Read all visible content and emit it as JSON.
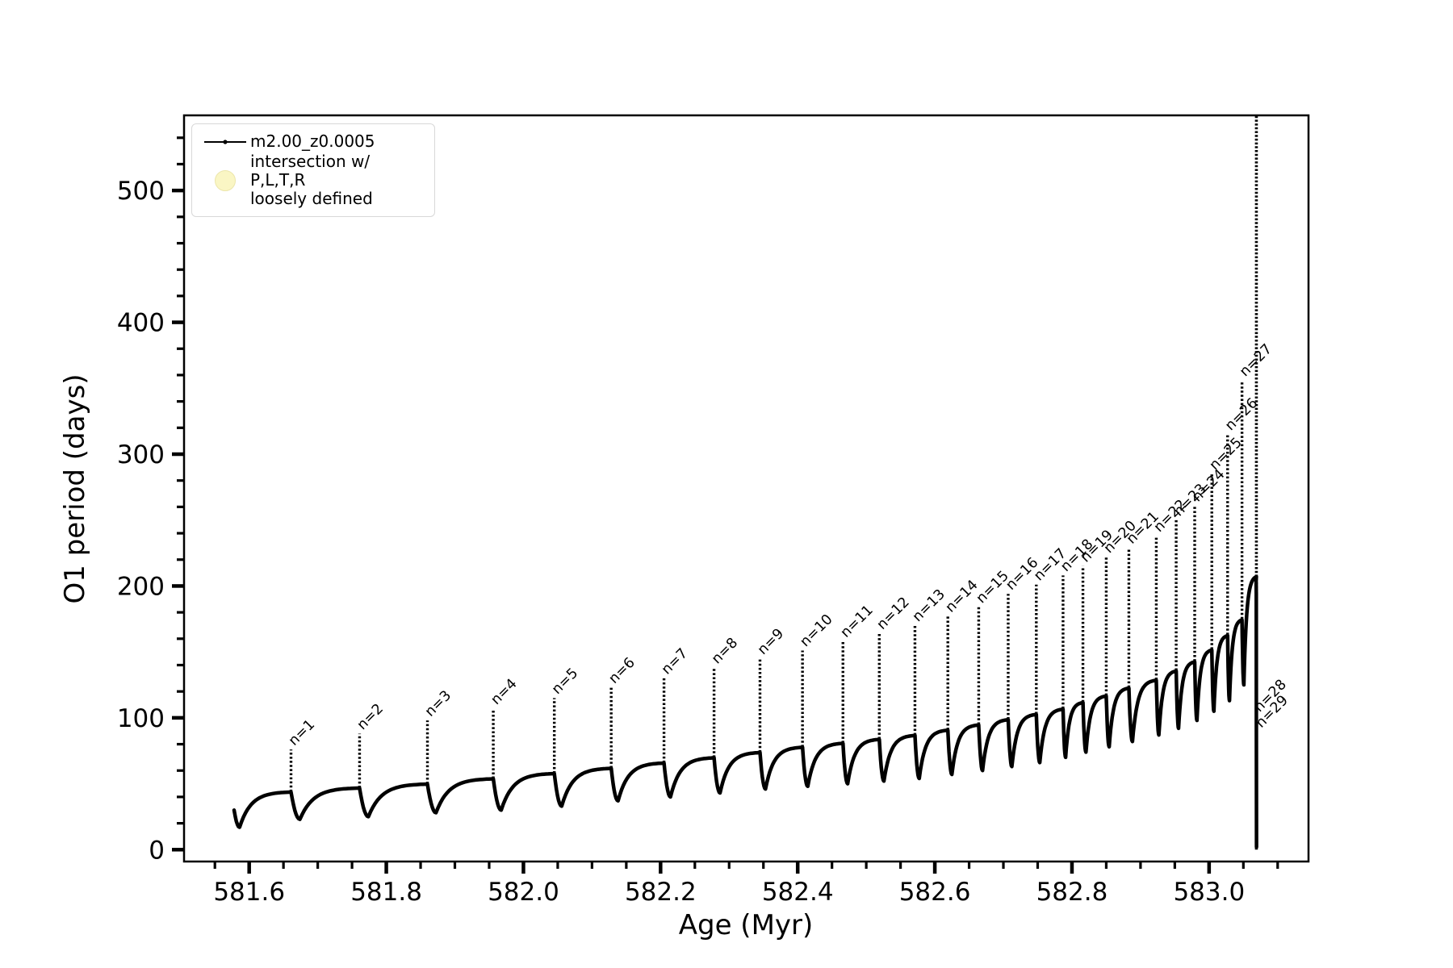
{
  "legend": {
    "items": [
      {
        "label": "m2.00_z0.0005",
        "marker": "line-dot",
        "marker_color": "#000000"
      },
      {
        "label": "intersection w/ P,L,T,R\nloosely defined",
        "marker": "filled-circle",
        "marker_color": "#faf6c4"
      }
    ]
  },
  "colors": {
    "series": "#000000",
    "intersection_marker": "#faf6c4",
    "legend_border": "#d8d8d8"
  },
  "chart_data": {
    "type": "line",
    "title": "",
    "xlabel": "Age (Myr)",
    "ylabel": "O1 period (days)",
    "series_name": "m2.00_z0.0005",
    "xlim": [
      581.505,
      583.145
    ],
    "ylim": [
      -9,
      557
    ],
    "xticks": [
      {
        "v": 581.6,
        "label": "581.6"
      },
      {
        "v": 581.8,
        "label": "581.8"
      },
      {
        "v": 582.0,
        "label": "582.0"
      },
      {
        "v": 582.2,
        "label": "582.2"
      },
      {
        "v": 582.4,
        "label": "582.4"
      },
      {
        "v": 582.6,
        "label": "582.6"
      },
      {
        "v": 582.8,
        "label": "582.8"
      },
      {
        "v": 583.0,
        "label": "583.0"
      }
    ],
    "yticks": [
      {
        "v": 0,
        "label": "0"
      },
      {
        "v": 100,
        "label": "100"
      },
      {
        "v": 200,
        "label": "200"
      },
      {
        "v": 300,
        "label": "300"
      },
      {
        "v": 400,
        "label": "400"
      },
      {
        "v": 500,
        "label": "500"
      }
    ],
    "x_minor_step": 0.05,
    "y_minor_step": 20,
    "grid": false,
    "legend_position": "upper-left",
    "annotation_prefix": "n=",
    "start": {
      "age": 581.578,
      "value": 30,
      "dip_value": 17,
      "dip_age": 581.586
    },
    "spikes": [
      {
        "n": 1,
        "age": 581.661,
        "peak": 76,
        "plateau_before": 44,
        "dip_after": 23
      },
      {
        "n": 2,
        "age": 581.761,
        "peak": 88,
        "plateau_before": 47,
        "dip_after": 25
      },
      {
        "n": 3,
        "age": 581.86,
        "peak": 98,
        "plateau_before": 50,
        "dip_after": 28
      },
      {
        "n": 4,
        "age": 581.956,
        "peak": 107,
        "plateau_before": 54,
        "dip_after": 30
      },
      {
        "n": 5,
        "age": 582.045,
        "peak": 115,
        "plateau_before": 58,
        "dip_after": 33
      },
      {
        "n": 6,
        "age": 582.128,
        "peak": 123,
        "plateau_before": 62,
        "dip_after": 37
      },
      {
        "n": 7,
        "age": 582.205,
        "peak": 130,
        "plateau_before": 66,
        "dip_after": 40
      },
      {
        "n": 8,
        "age": 582.278,
        "peak": 138,
        "plateau_before": 70,
        "dip_after": 43
      },
      {
        "n": 9,
        "age": 582.345,
        "peak": 145,
        "plateau_before": 74,
        "dip_after": 46
      },
      {
        "n": 10,
        "age": 582.407,
        "peak": 151,
        "plateau_before": 78,
        "dip_after": 48
      },
      {
        "n": 11,
        "age": 582.466,
        "peak": 158,
        "plateau_before": 81,
        "dip_after": 50
      },
      {
        "n": 12,
        "age": 582.519,
        "peak": 164,
        "plateau_before": 84,
        "dip_after": 52
      },
      {
        "n": 13,
        "age": 582.571,
        "peak": 170,
        "plateau_before": 87,
        "dip_after": 54
      },
      {
        "n": 14,
        "age": 582.619,
        "peak": 177,
        "plateau_before": 91,
        "dip_after": 57
      },
      {
        "n": 15,
        "age": 582.664,
        "peak": 184,
        "plateau_before": 95,
        "dip_after": 60
      },
      {
        "n": 16,
        "age": 582.707,
        "peak": 194,
        "plateau_before": 99,
        "dip_after": 63
      },
      {
        "n": 17,
        "age": 582.748,
        "peak": 201,
        "plateau_before": 103,
        "dip_after": 66
      },
      {
        "n": 18,
        "age": 582.787,
        "peak": 208,
        "plateau_before": 107,
        "dip_after": 70
      },
      {
        "n": 19,
        "age": 582.816,
        "peak": 215,
        "plateau_before": 112,
        "dip_after": 74
      },
      {
        "n": 20,
        "age": 582.85,
        "peak": 222,
        "plateau_before": 117,
        "dip_after": 78
      },
      {
        "n": 21,
        "age": 582.883,
        "peak": 229,
        "plateau_before": 123,
        "dip_after": 82
      },
      {
        "n": 22,
        "age": 582.923,
        "peak": 238,
        "plateau_before": 129,
        "dip_after": 87
      },
      {
        "n": 23,
        "age": 582.952,
        "peak": 250,
        "plateau_before": 136,
        "dip_after": 92
      },
      {
        "n": 24,
        "age": 582.979,
        "peak": 261,
        "plateau_before": 143,
        "dip_after": 98
      },
      {
        "n": 25,
        "age": 583.004,
        "peak": 285,
        "plateau_before": 152,
        "dip_after": 105
      },
      {
        "n": 26,
        "age": 583.027,
        "peak": 315,
        "plateau_before": 163,
        "dip_after": 113
      },
      {
        "n": 27,
        "age": 583.048,
        "peak": 356,
        "plateau_before": 175,
        "dip_after": 125
      }
    ],
    "final_event": {
      "age": 583.069,
      "peak_before": 208,
      "line_bottom": 0,
      "line_top": 557,
      "labels": [
        {
          "n": 28,
          "value": 104
        },
        {
          "n": 29,
          "value": 92
        }
      ]
    }
  }
}
